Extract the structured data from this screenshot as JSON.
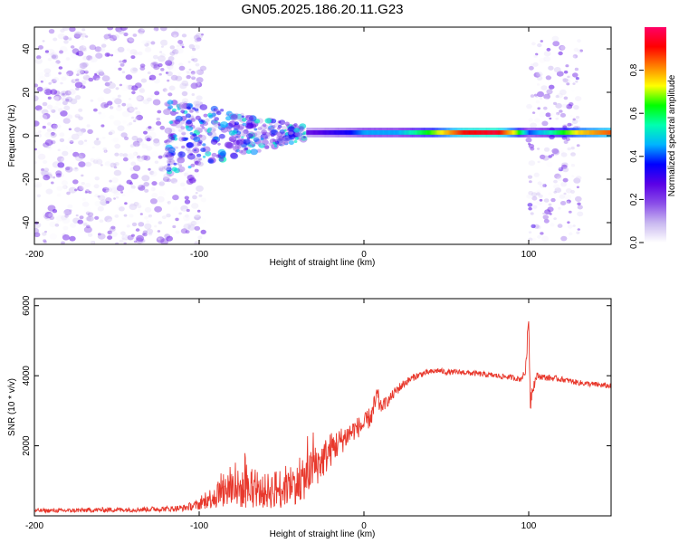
{
  "title": "GN05.2025.186.20.11.G23",
  "colors": {
    "snr_line": "#e8382c",
    "background": "#ffffff",
    "colormap": [
      "#ffffff",
      "#c9b8f0",
      "#8a4de8",
      "#5a00e6",
      "#0000ff",
      "#00b4ff",
      "#00ffb0",
      "#00ff00",
      "#ffff00",
      "#ff8000",
      "#ff0000",
      "#ff0066"
    ]
  },
  "chart_data": [
    {
      "type": "heatmap",
      "title": "",
      "xlabel": "Height of straight line (km)",
      "ylabel": "Frequency (Hz)",
      "xlim": [
        -200,
        150
      ],
      "ylim": [
        -50,
        50
      ],
      "xticks": [
        -200,
        -100,
        0,
        100
      ],
      "yticks": [
        -40,
        -20,
        0,
        20,
        40
      ],
      "colorbar": {
        "label": "Normalized spectral amplitude",
        "range": [
          0,
          1
        ],
        "ticks": [
          0.0,
          0.2,
          0.4,
          0.6,
          0.8
        ]
      },
      "features": [
        {
          "name": "noise_scatter",
          "x_range": [
            -200,
            -97
          ],
          "freq_range": [
            -50,
            50
          ],
          "amplitude": 0.1
        },
        {
          "name": "converging_tail",
          "x_range": [
            -120,
            -35
          ],
          "freq_range": [
            -22,
            18
          ],
          "amplitude": 0.3
        },
        {
          "name": "main_trace",
          "x_range": [
            -35,
            150
          ],
          "freq": 1.5,
          "amplitude_profile": [
            [
              -35,
              0.25
            ],
            [
              -10,
              0.35
            ],
            [
              0,
              0.45
            ],
            [
              20,
              0.45
            ],
            [
              40,
              0.65
            ],
            [
              60,
              0.9
            ],
            [
              80,
              0.95
            ],
            [
              92,
              0.7
            ],
            [
              100,
              0.4
            ],
            [
              110,
              0.5
            ],
            [
              130,
              0.75
            ],
            [
              150,
              0.85
            ]
          ]
        },
        {
          "name": "noise_burst",
          "x_range": [
            100,
            132
          ],
          "freq_range": [
            -48,
            45
          ],
          "amplitude": 0.15
        }
      ]
    },
    {
      "type": "line",
      "title": "",
      "xlabel": "Height of straight line (km)",
      "ylabel": "SNR (10 * v/v)",
      "xlim": [
        -200,
        150
      ],
      "ylim": [
        0,
        6200
      ],
      "xticks": [
        -200,
        -100,
        0,
        100
      ],
      "yticks": [
        2000,
        4000,
        6000
      ],
      "series": [
        {
          "x": [
            -200,
            -180,
            -160,
            -140,
            -120,
            -110,
            -100,
            -95,
            -90,
            -85,
            -80,
            -75,
            -70,
            -65,
            -60,
            -55,
            -50,
            -45,
            -40,
            -35,
            -30,
            -25,
            -20,
            -15,
            -10,
            -5,
            0,
            5,
            8,
            10,
            15,
            20,
            25,
            30,
            35,
            40,
            45,
            50,
            60,
            70,
            80,
            90,
            95,
            98,
            100,
            101,
            102,
            105,
            110,
            120,
            130,
            140,
            150
          ],
          "y": [
            150,
            150,
            170,
            180,
            200,
            220,
            320,
            450,
            600,
            700,
            800,
            750,
            700,
            650,
            700,
            750,
            800,
            900,
            900,
            1100,
            1400,
            1600,
            1900,
            2100,
            2300,
            2500,
            2600,
            2900,
            3400,
            3100,
            3300,
            3600,
            3800,
            3950,
            4050,
            4100,
            4150,
            4100,
            4100,
            4050,
            4000,
            3950,
            3900,
            4100,
            5600,
            3200,
            3600,
            4000,
            3950,
            3900,
            3800,
            3750,
            3700
          ],
          "noise": [
            60,
            60,
            70,
            70,
            80,
            90,
            150,
            250,
            400,
            500,
            600,
            550,
            500,
            400,
            500,
            550,
            600,
            600,
            550,
            600,
            600,
            550,
            500,
            400,
            350,
            300,
            300,
            300,
            400,
            200,
            150,
            150,
            120,
            100,
            90,
            80,
            80,
            80,
            80,
            80,
            80,
            80,
            80,
            100,
            300,
            300,
            200,
            100,
            90,
            80,
            80,
            80,
            80
          ]
        }
      ]
    }
  ]
}
